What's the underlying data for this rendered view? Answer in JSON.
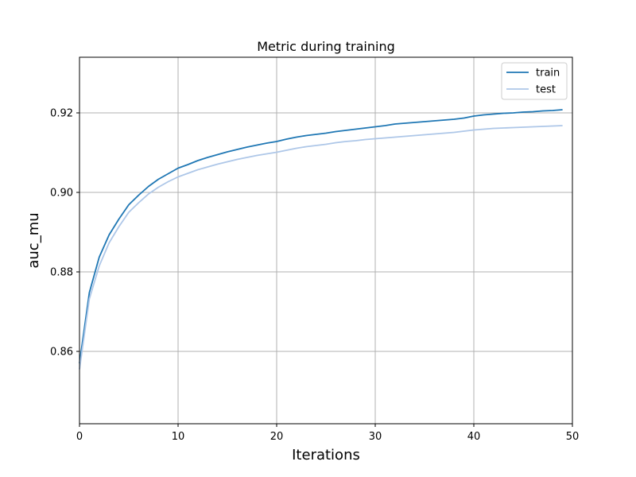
{
  "chart_data": {
    "type": "line",
    "title": "Metric during training",
    "xlabel": "Iterations",
    "ylabel": "auc_mu",
    "xlim": [
      0,
      50
    ],
    "ylim": [
      0.8418,
      0.934
    ],
    "xticks": [
      0,
      10,
      20,
      30,
      40,
      50
    ],
    "yticks": [
      0.86,
      0.88,
      0.9,
      0.92
    ],
    "xtick_labels": [
      "0",
      "10",
      "20",
      "30",
      "40",
      "50"
    ],
    "ytick_labels": [
      "0.86",
      "0.88",
      "0.90",
      "0.92"
    ],
    "grid": true,
    "legend_position": "top-right",
    "x": [
      0,
      1,
      2,
      3,
      4,
      5,
      6,
      7,
      8,
      9,
      10,
      11,
      12,
      13,
      14,
      15,
      16,
      17,
      18,
      19,
      20,
      21,
      22,
      23,
      24,
      25,
      26,
      27,
      28,
      29,
      30,
      31,
      32,
      33,
      34,
      35,
      36,
      37,
      38,
      39,
      40,
      41,
      42,
      43,
      44,
      45,
      46,
      47,
      48,
      49
    ],
    "series": [
      {
        "name": "train",
        "color": "#1f77b4",
        "values": [
          0.857,
          0.8748,
          0.8837,
          0.8893,
          0.8933,
          0.8969,
          0.8993,
          0.9015,
          0.9033,
          0.9047,
          0.9061,
          0.907,
          0.908,
          0.9088,
          0.9095,
          0.9102,
          0.9108,
          0.9114,
          0.9119,
          0.9124,
          0.9128,
          0.9134,
          0.9139,
          0.9143,
          0.9146,
          0.9149,
          0.9153,
          0.9156,
          0.9159,
          0.9162,
          0.9165,
          0.9168,
          0.9172,
          0.9174,
          0.9176,
          0.9178,
          0.918,
          0.9182,
          0.9184,
          0.9187,
          0.9192,
          0.9195,
          0.9197,
          0.9199,
          0.92,
          0.9202,
          0.9203,
          0.9205,
          0.9206,
          0.9208
        ]
      },
      {
        "name": "test",
        "color": "#aec7e8",
        "values": [
          0.8555,
          0.8732,
          0.8815,
          0.8873,
          0.8914,
          0.895,
          0.8974,
          0.8996,
          0.9013,
          0.9027,
          0.9039,
          0.9048,
          0.9057,
          0.9064,
          0.9071,
          0.9077,
          0.9083,
          0.9088,
          0.9093,
          0.9097,
          0.9101,
          0.9106,
          0.9111,
          0.9115,
          0.9118,
          0.9121,
          0.9125,
          0.9128,
          0.913,
          0.9133,
          0.9135,
          0.9137,
          0.9139,
          0.9141,
          0.9143,
          0.9145,
          0.9147,
          0.9149,
          0.9151,
          0.9154,
          0.9157,
          0.9159,
          0.9161,
          0.9162,
          0.9163,
          0.9164,
          0.9165,
          0.9166,
          0.9167,
          0.9168
        ]
      }
    ]
  }
}
